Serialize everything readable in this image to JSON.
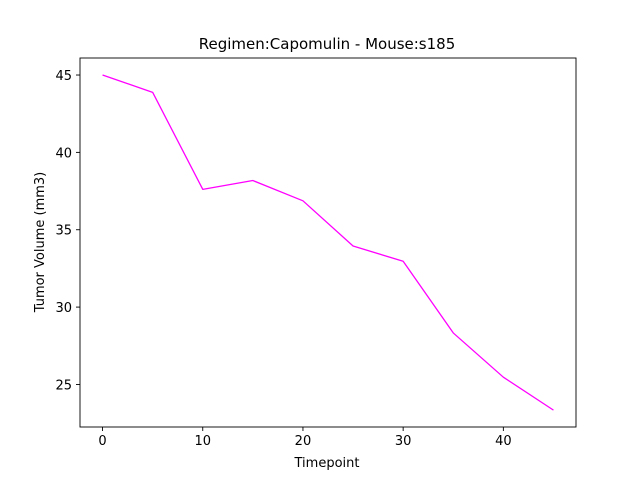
{
  "chart_data": {
    "type": "line",
    "title": "Regimen:Capomulin - Mouse:s185",
    "xlabel": "Timepoint",
    "ylabel": "Tumor Volume (mm3)",
    "x": [
      0,
      5,
      10,
      15,
      20,
      25,
      30,
      35,
      40,
      45
    ],
    "series": [
      {
        "values": [
          45.0,
          43.88,
          37.61,
          38.18,
          36.87,
          33.95,
          32.96,
          28.33,
          25.47,
          23.34
        ],
        "color": "#ff00ff"
      }
    ],
    "xlim": [
      -2.25,
      47.25
    ],
    "ylim": [
      22.25,
      46.1
    ],
    "xticks": [
      0,
      10,
      20,
      30,
      40
    ],
    "yticks": [
      25,
      30,
      35,
      40,
      45
    ],
    "grid": false,
    "legend": "none"
  }
}
